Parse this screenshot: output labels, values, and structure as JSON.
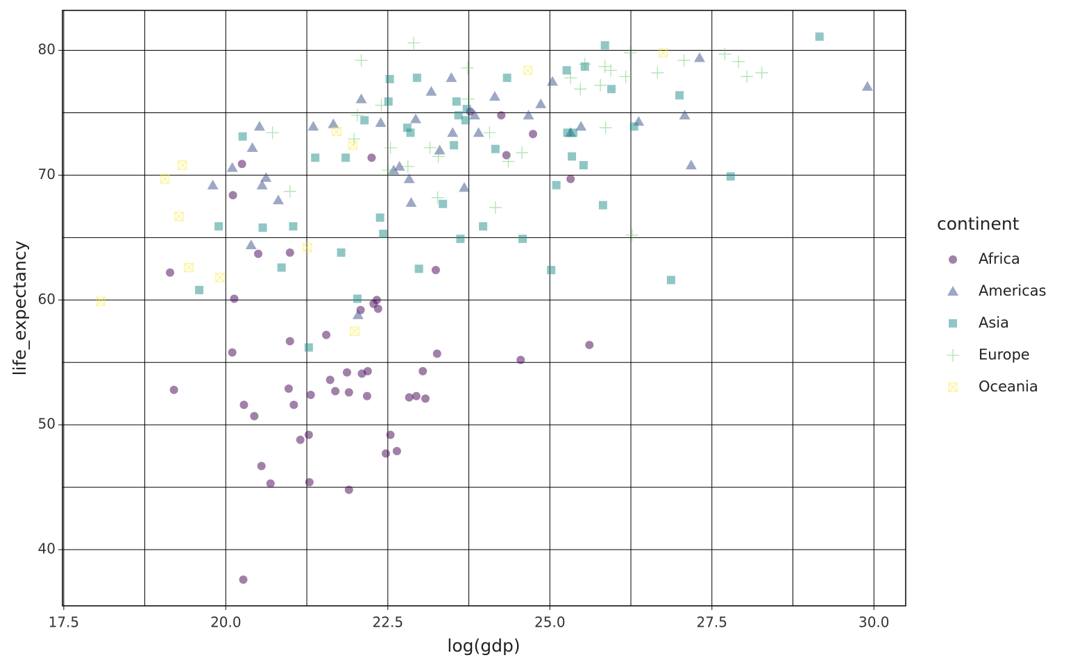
{
  "chart_data": {
    "type": "scatter",
    "x_label": "log(gdp)",
    "y_label": "life_expectancy",
    "legend_title": "continent",
    "xlim": [
      17.48,
      30.49
    ],
    "ylim": [
      35.5,
      83.2
    ],
    "xticks": [
      17.5,
      {
        "value": 20,
        "label": "20.0"
      },
      22.5,
      {
        "value": 25,
        "label": "25.0"
      },
      27.5,
      {
        "value": 30,
        "label": "30.0"
      }
    ],
    "yticks": [
      40,
      50,
      60,
      70,
      80
    ],
    "x_minor_grid": [
      18.75,
      21.25,
      23.75,
      26.25,
      28.75
    ],
    "y_minor_grid": [
      45,
      55,
      65,
      75
    ],
    "grid": true,
    "alpha": 0.5,
    "legend": "right",
    "series": [
      {
        "name": "Africa",
        "color": "#440154",
        "shape": "circle",
        "x": [
          20.25,
          20.11,
          19.14,
          20.13,
          20.1,
          19.2,
          20.28,
          20.44,
          20.5,
          20.99,
          20.55,
          20.69,
          20.99,
          20.97,
          21.05,
          21.15,
          21.28,
          21.31,
          21.29,
          21.55,
          21.61,
          21.69,
          21.87,
          21.9,
          21.9,
          22.08,
          22.1,
          22.19,
          22.18,
          22.25,
          22.28,
          22.33,
          22.35,
          22.47,
          22.54,
          22.64,
          22.83,
          22.94,
          23.04,
          23.08,
          23.24,
          23.26,
          23.77,
          24.25,
          24.33,
          24.55,
          24.74,
          25.32,
          25.61,
          20.27
        ],
        "y": [
          70.9,
          68.4,
          62.2,
          60.1,
          55.8,
          52.8,
          51.6,
          50.7,
          63.7,
          63.8,
          46.7,
          45.3,
          56.7,
          52.9,
          51.6,
          48.8,
          49.2,
          52.4,
          45.4,
          57.2,
          53.6,
          52.7,
          54.2,
          52.6,
          44.8,
          59.2,
          54.1,
          54.3,
          52.3,
          71.4,
          59.7,
          60.0,
          59.3,
          47.7,
          49.2,
          47.9,
          52.2,
          52.3,
          54.3,
          52.1,
          62.4,
          55.7,
          75.1,
          74.8,
          71.6,
          55.2,
          73.3,
          69.7,
          56.4,
          37.6
        ]
      },
      {
        "name": "Americas",
        "color": "#3b528b",
        "shape": "triangle",
        "x": [
          19.8,
          20.1,
          20.39,
          20.41,
          20.52,
          20.56,
          20.62,
          20.81,
          21.35,
          21.66,
          22.04,
          22.09,
          22.39,
          22.59,
          22.68,
          22.83,
          22.86,
          22.93,
          23.17,
          23.3,
          23.48,
          23.5,
          23.68,
          23.84,
          23.9,
          24.15,
          24.67,
          24.86,
          25.04,
          25.48,
          25.32,
          26.37,
          27.08,
          27.18,
          27.31,
          29.9
        ],
        "y": [
          69.2,
          70.6,
          64.4,
          72.2,
          73.9,
          69.2,
          69.8,
          68.0,
          73.9,
          74.1,
          58.8,
          76.1,
          74.2,
          70.4,
          70.7,
          69.7,
          67.8,
          74.5,
          76.7,
          72.0,
          77.8,
          73.4,
          69.0,
          74.8,
          73.4,
          76.3,
          74.8,
          75.7,
          77.5,
          73.9,
          73.4,
          74.3,
          74.8,
          70.8,
          79.4,
          77.1
        ]
      },
      {
        "name": "Asia",
        "color": "#21908c",
        "shape": "square",
        "x": [
          20.26,
          19.89,
          19.59,
          20.57,
          20.86,
          21.04,
          21.28,
          21.38,
          21.78,
          21.85,
          22.03,
          22.14,
          22.38,
          22.43,
          22.51,
          22.53,
          22.8,
          22.85,
          22.98,
          22.95,
          23.35,
          23.52,
          23.56,
          23.59,
          23.62,
          23.7,
          23.72,
          23.97,
          24.16,
          24.34,
          24.58,
          25.02,
          25.1,
          25.26,
          25.27,
          25.34,
          25.36,
          25.52,
          25.54,
          25.82,
          25.85,
          25.95,
          26.3,
          26.87,
          27.0,
          27.79,
          29.16
        ],
        "y": [
          73.1,
          65.9,
          60.8,
          65.8,
          62.6,
          65.9,
          56.2,
          71.4,
          63.8,
          71.4,
          60.1,
          74.4,
          66.6,
          65.3,
          75.9,
          77.7,
          73.8,
          73.4,
          62.5,
          77.8,
          67.7,
          72.4,
          75.9,
          74.8,
          64.9,
          74.4,
          75.3,
          65.9,
          72.1,
          77.8,
          64.9,
          62.4,
          69.2,
          78.4,
          73.4,
          71.5,
          73.4,
          70.8,
          78.7,
          67.6,
          80.4,
          76.9,
          73.9,
          61.6,
          76.4,
          69.9,
          81.1
        ]
      },
      {
        "name": "Europe",
        "color": "#5dc863",
        "shape": "plus",
        "x": [
          20.72,
          20.99,
          22.09,
          21.98,
          22.03,
          22.4,
          22.54,
          22.51,
          22.81,
          22.9,
          23.15,
          23.27,
          23.28,
          23.73,
          23.74,
          24.07,
          24.16,
          24.36,
          24.57,
          25.32,
          25.47,
          25.54,
          25.78,
          25.85,
          25.86,
          25.94,
          26.17,
          26.24,
          26.27,
          26.66,
          27.07,
          27.7,
          27.91,
          28.04,
          28.27
        ],
        "y": [
          73.4,
          68.7,
          79.2,
          72.9,
          74.8,
          75.6,
          72.2,
          70.4,
          70.7,
          80.6,
          72.2,
          68.2,
          71.5,
          78.6,
          76.1,
          73.4,
          67.4,
          71.1,
          71.8,
          77.8,
          76.9,
          78.9,
          77.2,
          78.7,
          73.8,
          78.4,
          77.9,
          79.8,
          65.2,
          78.2,
          79.2,
          79.7,
          79.1,
          77.9,
          78.2
        ]
      },
      {
        "name": "Oceania",
        "color": "#fde725",
        "shape": "square-cross",
        "x": [
          18.07,
          19.06,
          19.33,
          19.28,
          19.43,
          19.91,
          21.26,
          21.71,
          21.96,
          21.99,
          24.66,
          26.75
        ],
        "y": [
          59.9,
          69.7,
          70.8,
          66.7,
          62.6,
          61.8,
          64.2,
          73.5,
          72.4,
          57.5,
          78.4,
          79.8
        ]
      }
    ]
  }
}
